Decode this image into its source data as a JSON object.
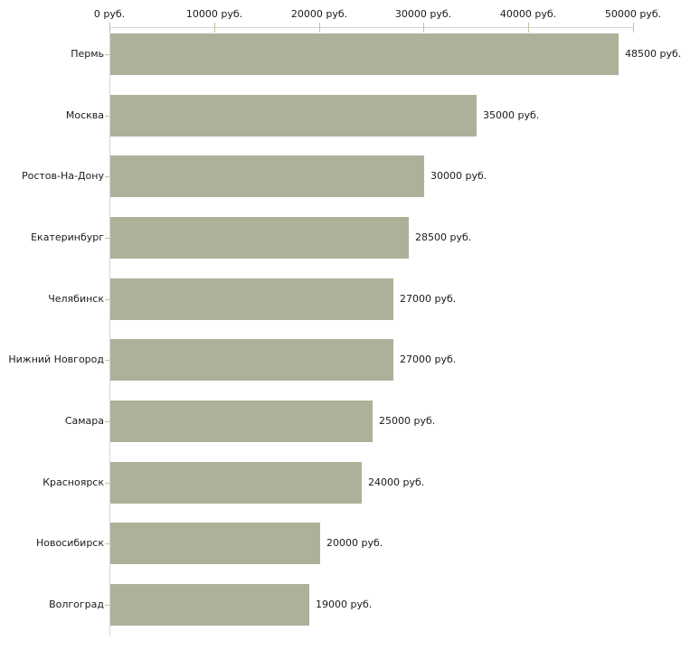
{
  "chart_data": {
    "type": "bar",
    "orientation": "horizontal",
    "title": "",
    "xlabel": "",
    "ylabel": "",
    "unit": "руб.",
    "categories": [
      "Пермь",
      "Москва",
      "Ростов-На-Дону",
      "Екатеринбург",
      "Челябинск",
      "Нижний Новгород",
      "Самара",
      "Красноярск",
      "Новосибирск",
      "Волгоград"
    ],
    "values": [
      48500,
      35000,
      30000,
      28500,
      27000,
      27000,
      25000,
      24000,
      20000,
      19000
    ],
    "value_labels": [
      "48500 руб.",
      "35000 руб.",
      "30000 руб.",
      "28500 руб.",
      "27000 руб.",
      "27000 руб.",
      "25000 руб.",
      "24000 руб.",
      "20000 руб.",
      "19000 руб."
    ],
    "x_axis": {
      "position": "top",
      "min": 0,
      "max": 50000,
      "tick_values": [
        0,
        10000,
        20000,
        30000,
        40000,
        50000
      ],
      "tick_labels": [
        "0 руб.",
        "10000 руб.",
        "20000 руб.",
        "30000 руб.",
        "40000 руб.",
        "50000 руб."
      ]
    },
    "grid": false,
    "legend": false,
    "colors": {
      "bar_fill": "#acb29a",
      "axis_line": "#d6d6d2",
      "tick_mark": "#c2c2a0",
      "text": "#1a1a1a",
      "background": "#ffffff"
    }
  }
}
